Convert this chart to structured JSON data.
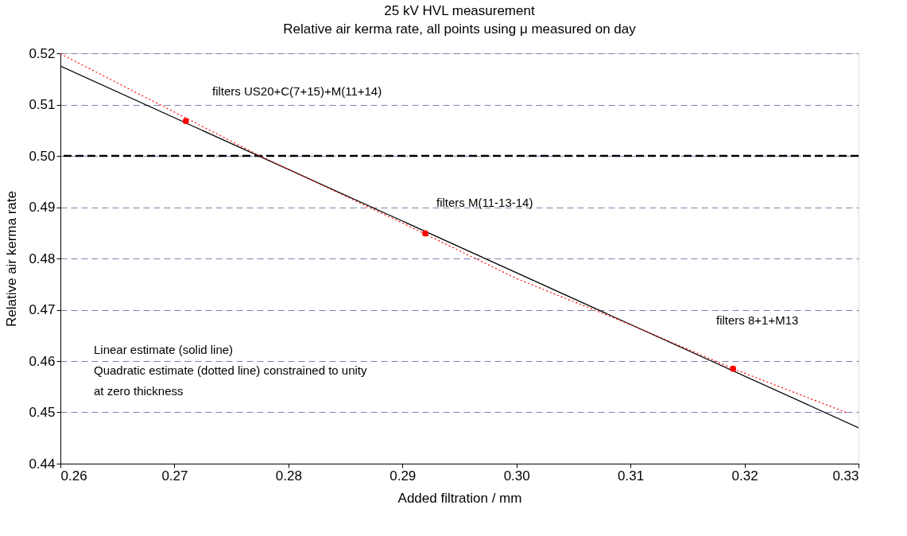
{
  "chart_data": {
    "type": "line",
    "title": "25 kV HVL measurement",
    "subtitle": "Relative air kerma rate, all points using μ measured on day",
    "xlabel": "Added filtration / mm",
    "ylabel": "Relative air kerma rate",
    "series": [
      {
        "color": "#000000",
        "line_style": "solid",
        "x": [
          0.26,
          0.33
        ],
        "values": [
          0.5175,
          0.447
        ]
      },
      {
        "color": "#ff0000",
        "line_style": "dotted",
        "x": [
          0.26,
          0.2775,
          0.29,
          0.3,
          0.31,
          0.319,
          0.329
        ],
        "values": [
          0.5199,
          0.5,
          0.4869,
          0.4761,
          0.4671,
          0.4585,
          0.4499
        ]
      },
      {
        "type": "scatter",
        "color": "#ff0000",
        "marker": "circle",
        "x": [
          0.271,
          0.292,
          0.319
        ],
        "values": [
          0.5068,
          0.4849,
          0.4585
        ]
      }
    ],
    "xlim": [
      0.26,
      0.33
    ],
    "xticks": [
      0.26,
      0.27,
      0.28,
      0.29,
      {
        "value": 0.3,
        "label": "0.30"
      },
      0.31,
      0.32,
      0.33
    ],
    "ylim": [
      0.44,
      0.52
    ],
    "yticks": [
      0.44,
      0.45,
      0.46,
      0.47,
      0.48,
      0.49,
      {
        "value": 0.5,
        "label": "0.50"
      },
      0.51,
      0.52
    ],
    "grid": "y",
    "ref_lines": [
      {
        "axis": "y",
        "value": 0.5,
        "color": "#000000",
        "line_style": "dashed"
      }
    ],
    "annotations": [
      "filters US20+C(7+15)+M(11+14)",
      "filters M(11-13-14)",
      "filters 8+1+M13",
      "Linear estimate (solid line)",
      "Quadratic estimate (dotted line) constrained to unity",
      "at zero thickness"
    ]
  }
}
